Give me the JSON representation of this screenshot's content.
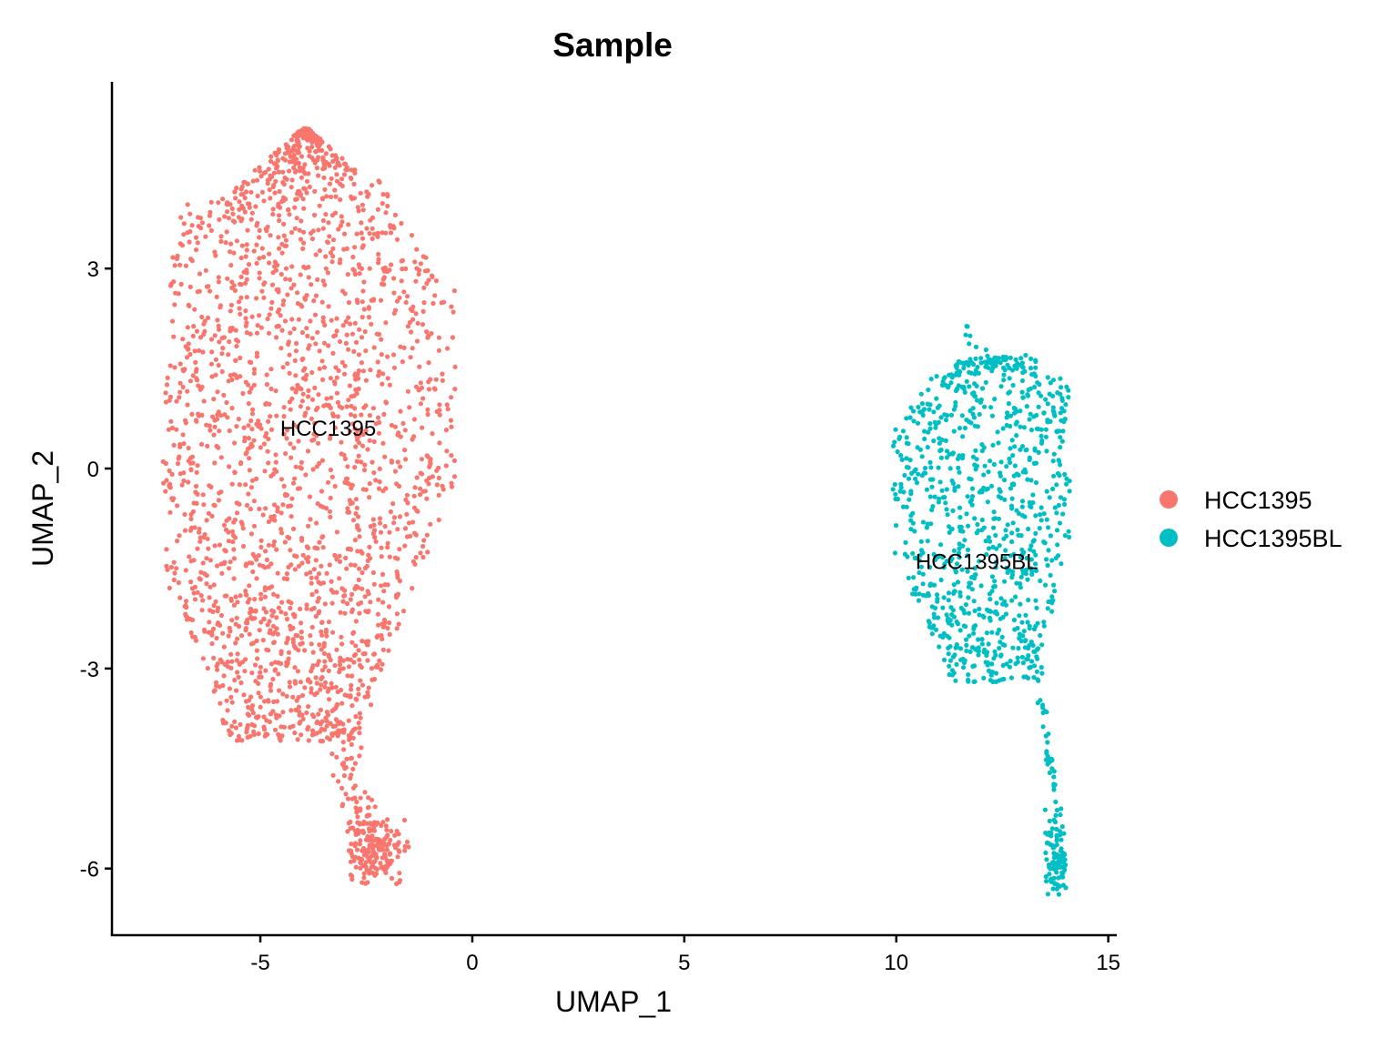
{
  "chart_data": {
    "type": "scatter",
    "title": "Sample",
    "xlabel": "UMAP_1",
    "ylabel": "UMAP_2",
    "xlim": [
      -8.5,
      15.2
    ],
    "ylim": [
      -7.0,
      5.8
    ],
    "xticks": [
      -5,
      0,
      5,
      10,
      15
    ],
    "yticks": [
      -6,
      -3,
      0,
      3
    ],
    "xtick_labels": [
      "-5",
      "0",
      "5",
      "10",
      "15"
    ],
    "ytick_labels": [
      "-6",
      "-3",
      "0",
      "3"
    ],
    "grid": false,
    "legend_position": "right",
    "series": [
      {
        "name": "HCC1395",
        "color": "#F8766D",
        "label_position": [
          -3.4,
          0.6
        ],
        "approx_points": 2400,
        "shape": {
          "main_body": {
            "center": [
              -4.0,
              0.5
            ],
            "x_extent": [
              -7.4,
              -0.3
            ],
            "y_extent": [
              -4.4,
              5.1
            ]
          },
          "tail": [
            [
              -3.0,
              -4.2
            ],
            [
              -2.8,
              -4.9
            ],
            [
              -2.6,
              -5.3
            ]
          ],
          "bottom_blob": {
            "center": [
              -2.3,
              -5.7
            ],
            "x_extent": [
              -3.0,
              -1.5
            ],
            "y_extent": [
              -6.3,
              -5.2
            ]
          }
        }
      },
      {
        "name": "HCC1395BL",
        "color": "#00BFC4",
        "label_position": [
          11.9,
          -1.4
        ],
        "approx_points": 1050,
        "shape": {
          "main_body": {
            "center": [
              12.0,
              -0.7
            ],
            "x_extent": [
              9.9,
              14.1
            ],
            "y_extent": [
              -3.2,
              2.1
            ]
          },
          "tail": [
            [
              13.4,
              -3.4
            ],
            [
              13.6,
              -4.3
            ],
            [
              13.7,
              -4.8
            ]
          ],
          "bottom_blob": {
            "center": [
              13.8,
              -5.8
            ],
            "x_extent": [
              13.5,
              14.0
            ],
            "y_extent": [
              -6.4,
              -5.0
            ]
          }
        }
      }
    ],
    "legend": [
      {
        "label": "HCC1395",
        "color": "#F8766D"
      },
      {
        "label": "HCC1395BL",
        "color": "#00BFC4"
      }
    ]
  }
}
